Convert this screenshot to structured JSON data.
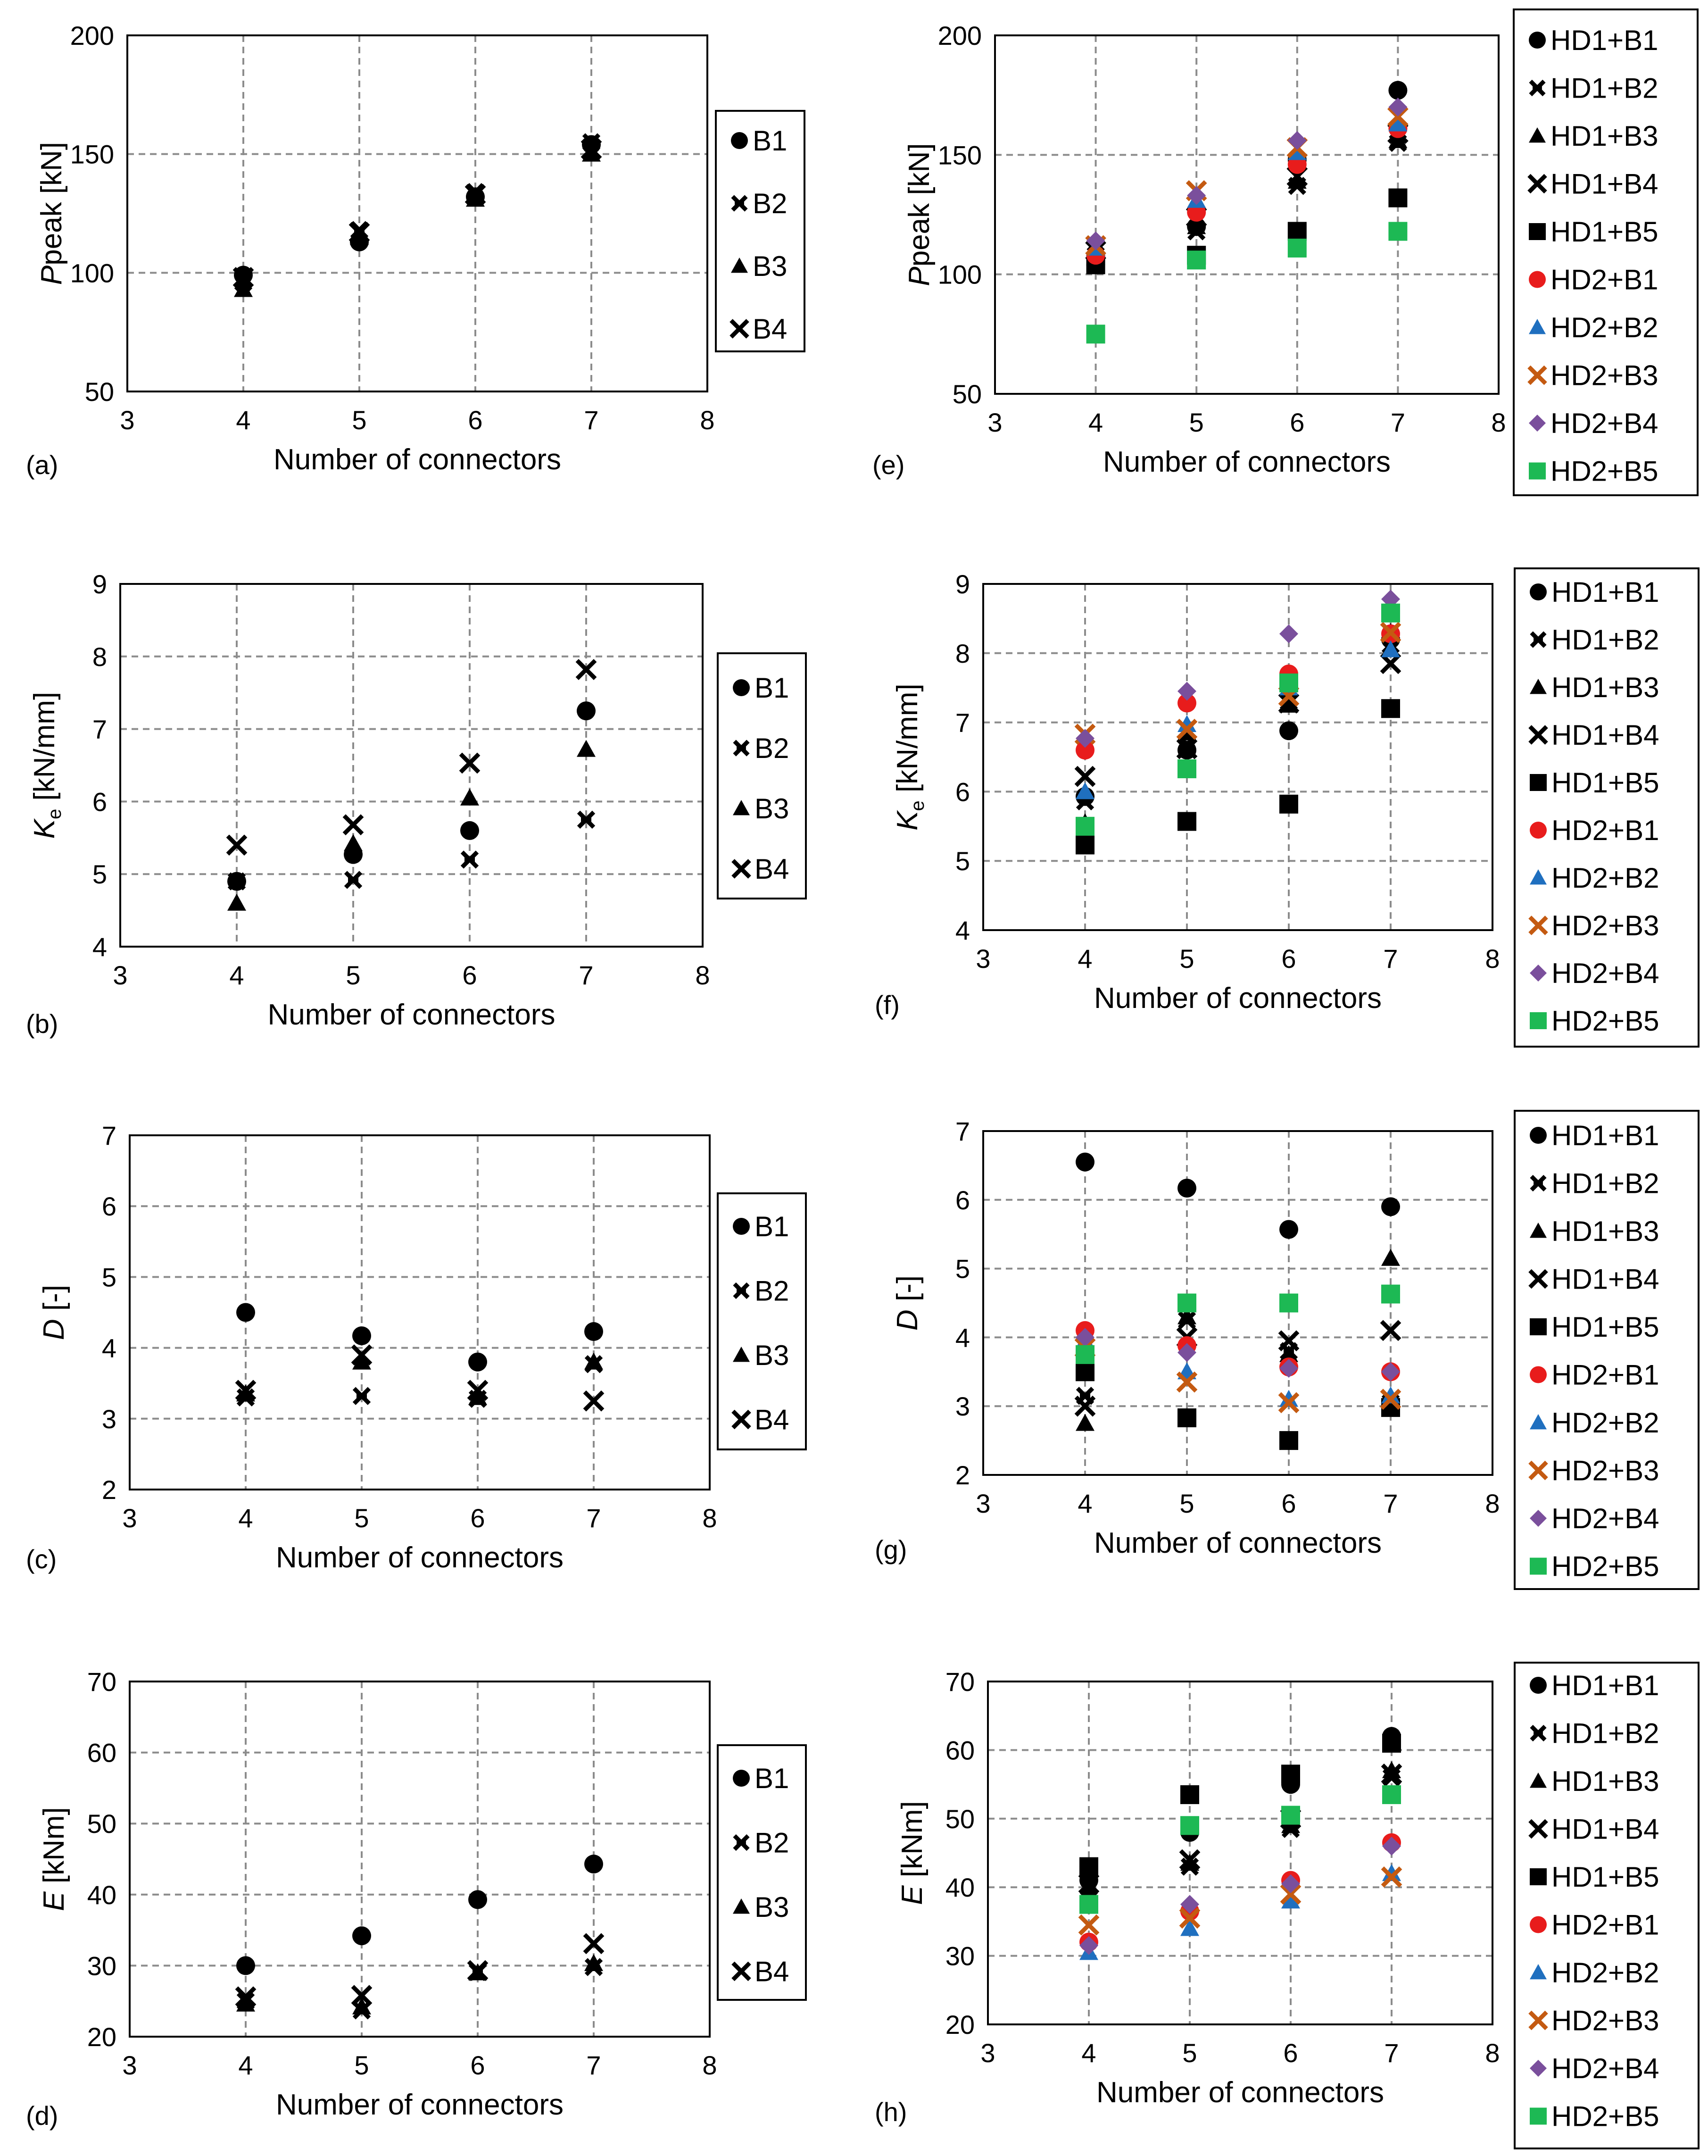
{
  "colors": {
    "HD1+B1": "#000000",
    "HD1+B2": "#000000",
    "HD1+B3": "#000000",
    "HD1+B4": "#000000",
    "HD1+B5": "#000000",
    "HD2+B1": "#e81c1c",
    "HD2+B2": "#1f6fbf",
    "HD2+B3": "#c45a11",
    "HD2+B4": "#7a4f9c",
    "HD2+B5": "#1db954",
    "B1": "#000000",
    "B2": "#000000",
    "B3": "#000000",
    "B4": "#000000"
  },
  "chart_data": [
    {
      "id": "a",
      "panel_label": "(a)",
      "type": "scatter",
      "xlabel": "Number of connectors",
      "ylabel_italic": "P",
      "ylabel_rest": "peak [kN]",
      "xlim": [
        3,
        8
      ],
      "ylim": [
        50,
        200
      ],
      "xticks": [
        "3",
        "4",
        "5",
        "6",
        "7",
        "8"
      ],
      "yticks": [
        "50",
        "100",
        "150",
        "200"
      ],
      "x": [
        4,
        5,
        6,
        7
      ],
      "series": [
        {
          "name": "B1",
          "marker": "circle",
          "values": [
            99,
            113,
            132,
            154
          ]
        },
        {
          "name": "B2",
          "marker": "star",
          "values": [
            96,
            118,
            134,
            155
          ]
        },
        {
          "name": "B3",
          "marker": "triangle",
          "values": [
            93,
            115,
            131,
            150
          ]
        },
        {
          "name": "B4",
          "marker": "x",
          "values": [
            98,
            117,
            133,
            152
          ]
        }
      ]
    },
    {
      "id": "e",
      "panel_label": "(e)",
      "type": "scatter",
      "xlabel": "Number of connectors",
      "ylabel_italic": "P",
      "ylabel_rest": "peak [kN]",
      "xlim": [
        3,
        8
      ],
      "ylim": [
        50,
        200
      ],
      "xticks": [
        "3",
        "4",
        "5",
        "6",
        "7",
        "8"
      ],
      "yticks": [
        "50",
        "100",
        "150",
        "200"
      ],
      "x": [
        4,
        5,
        6,
        7
      ],
      "series": [
        {
          "name": "HD1+B1",
          "marker": "circle",
          "values": [
            104,
            120,
            148,
            177
          ]
        },
        {
          "name": "HD1+B2",
          "marker": "star",
          "values": [
            108,
            118,
            137,
            155
          ]
        },
        {
          "name": "HD1+B3",
          "marker": "triangle",
          "values": [
            106,
            120,
            139,
            156
          ]
        },
        {
          "name": "HD1+B4",
          "marker": "x",
          "values": [
            110,
            124,
            141,
            159
          ]
        },
        {
          "name": "HD1+B5",
          "marker": "square",
          "values": [
            104,
            108,
            118,
            132
          ]
        },
        {
          "name": "HD2+B1",
          "marker": "circle",
          "values": [
            108,
            126,
            146,
            161
          ]
        },
        {
          "name": "HD2+B2",
          "marker": "triangle",
          "values": [
            111,
            131,
            151,
            163
          ]
        },
        {
          "name": "HD2+B3",
          "marker": "x",
          "values": [
            112,
            135,
            153,
            166
          ]
        },
        {
          "name": "HD2+B4",
          "marker": "diamond",
          "values": [
            114,
            133,
            156,
            170
          ]
        },
        {
          "name": "HD2+B5",
          "marker": "square",
          "values": [
            75,
            106,
            111,
            118
          ]
        }
      ]
    },
    {
      "id": "b",
      "panel_label": "(b)",
      "type": "scatter",
      "xlabel": "Number of connectors",
      "ylabel_italic": "K",
      "ylabel_sub": "e",
      "ylabel_rest": " [kN/mm]",
      "xlim": [
        3,
        8
      ],
      "ylim": [
        4,
        9
      ],
      "xticks": [
        "3",
        "4",
        "5",
        "6",
        "7",
        "8"
      ],
      "yticks": [
        "4",
        "5",
        "6",
        "7",
        "8",
        "9"
      ],
      "x": [
        4,
        5,
        6,
        7
      ],
      "series": [
        {
          "name": "B1",
          "marker": "circle",
          "values": [
            4.9,
            5.27,
            5.6,
            7.25
          ]
        },
        {
          "name": "B2",
          "marker": "star",
          "values": [
            4.9,
            4.92,
            5.2,
            5.75
          ]
        },
        {
          "name": "B3",
          "marker": "triangle",
          "values": [
            4.6,
            5.42,
            6.05,
            6.72
          ]
        },
        {
          "name": "B4",
          "marker": "x",
          "values": [
            5.4,
            5.68,
            6.53,
            7.82
          ]
        }
      ]
    },
    {
      "id": "f",
      "panel_label": "(f)",
      "type": "scatter",
      "xlabel": "Number of connectors",
      "ylabel_italic": "K",
      "ylabel_sub": "e",
      "ylabel_rest": " [kN/mm]",
      "xlim": [
        3,
        8
      ],
      "ylim": [
        4,
        9
      ],
      "xticks": [
        "3",
        "4",
        "5",
        "6",
        "7",
        "8"
      ],
      "yticks": [
        "4",
        "5",
        "6",
        "7",
        "8",
        "9"
      ],
      "x": [
        4,
        5,
        6,
        7
      ],
      "series": [
        {
          "name": "HD1+B1",
          "marker": "circle",
          "values": [
            5.93,
            6.6,
            6.88,
            8.2
          ]
        },
        {
          "name": "HD1+B2",
          "marker": "star",
          "values": [
            5.86,
            6.68,
            7.3,
            8.12
          ]
        },
        {
          "name": "HD1+B3",
          "marker": "triangle",
          "values": [
            5.55,
            6.85,
            7.25,
            8.3
          ]
        },
        {
          "name": "HD1+B4",
          "marker": "x",
          "values": [
            6.22,
            6.62,
            7.28,
            7.85
          ]
        },
        {
          "name": "HD1+B5",
          "marker": "square",
          "values": [
            5.23,
            5.57,
            5.82,
            7.2
          ]
        },
        {
          "name": "HD2+B1",
          "marker": "circle",
          "values": [
            6.6,
            7.28,
            7.7,
            8.28
          ]
        },
        {
          "name": "HD2+B2",
          "marker": "triangle",
          "values": [
            6.0,
            6.97,
            7.5,
            8.05
          ]
        },
        {
          "name": "HD2+B3",
          "marker": "x",
          "values": [
            6.83,
            6.9,
            7.38,
            8.3
          ]
        },
        {
          "name": "HD2+B4",
          "marker": "diamond",
          "values": [
            6.77,
            7.45,
            8.28,
            8.78
          ]
        },
        {
          "name": "HD2+B5",
          "marker": "square",
          "values": [
            5.5,
            6.33,
            7.57,
            8.58
          ]
        }
      ]
    },
    {
      "id": "c",
      "panel_label": "(c)",
      "type": "scatter",
      "xlabel": "Number of connectors",
      "ylabel_italic": "D",
      "ylabel_rest": " [-]",
      "xlim": [
        3,
        8
      ],
      "ylim": [
        2,
        7
      ],
      "xticks": [
        "3",
        "4",
        "5",
        "6",
        "7",
        "8"
      ],
      "yticks": [
        "2",
        "3",
        "4",
        "5",
        "6",
        "7"
      ],
      "x": [
        4,
        5,
        6,
        7
      ],
      "series": [
        {
          "name": "B1",
          "marker": "circle",
          "values": [
            4.5,
            4.17,
            3.8,
            4.23
          ]
        },
        {
          "name": "B2",
          "marker": "star",
          "values": [
            3.3,
            3.32,
            3.28,
            3.77
          ]
        },
        {
          "name": "B3",
          "marker": "triangle",
          "values": [
            3.35,
            3.8,
            3.3,
            3.8
          ]
        },
        {
          "name": "B4",
          "marker": "x",
          "values": [
            3.4,
            3.9,
            3.4,
            3.25
          ]
        }
      ]
    },
    {
      "id": "g",
      "panel_label": "(g)",
      "type": "scatter",
      "xlabel": "Number of connectors",
      "ylabel_italic": "D",
      "ylabel_rest": " [-]",
      "xlim": [
        3,
        8
      ],
      "ylim": [
        2,
        7
      ],
      "xticks": [
        "3",
        "4",
        "5",
        "6",
        "7",
        "8"
      ],
      "yticks": [
        "2",
        "3",
        "4",
        "5",
        "6",
        "7"
      ],
      "x": [
        4,
        5,
        6,
        7
      ],
      "series": [
        {
          "name": "HD1+B1",
          "marker": "circle",
          "values": [
            6.55,
            6.17,
            5.57,
            5.9
          ]
        },
        {
          "name": "HD1+B2",
          "marker": "star",
          "values": [
            3.15,
            4.25,
            3.8,
            3.05
          ]
        },
        {
          "name": "HD1+B3",
          "marker": "triangle",
          "values": [
            2.75,
            4.3,
            3.75,
            5.15
          ]
        },
        {
          "name": "HD1+B4",
          "marker": "x",
          "values": [
            3.0,
            4.0,
            3.95,
            4.1
          ]
        },
        {
          "name": "HD1+B5",
          "marker": "square",
          "values": [
            3.5,
            2.83,
            2.5,
            2.98
          ]
        },
        {
          "name": "HD2+B1",
          "marker": "circle",
          "values": [
            4.1,
            3.88,
            3.57,
            3.5
          ]
        },
        {
          "name": "HD2+B2",
          "marker": "triangle",
          "values": [
            3.95,
            3.5,
            3.1,
            3.15
          ]
        },
        {
          "name": "HD2+B3",
          "marker": "x",
          "values": [
            3.85,
            3.35,
            3.05,
            3.1
          ]
        },
        {
          "name": "HD2+B4",
          "marker": "diamond",
          "values": [
            4.0,
            3.78,
            3.55,
            3.5
          ]
        },
        {
          "name": "HD2+B5",
          "marker": "square",
          "values": [
            3.75,
            4.5,
            4.5,
            4.63
          ]
        }
      ]
    },
    {
      "id": "d",
      "panel_label": "(d)",
      "type": "scatter",
      "xlabel": "Number of connectors",
      "ylabel_italic": "E",
      "ylabel_rest": " [kNm]",
      "xlim": [
        3,
        8
      ],
      "ylim": [
        20,
        70
      ],
      "xticks": [
        "3",
        "4",
        "5",
        "6",
        "7",
        "8"
      ],
      "yticks": [
        "20",
        "30",
        "40",
        "50",
        "60",
        "70"
      ],
      "x": [
        4,
        5,
        6,
        7
      ],
      "series": [
        {
          "name": "B1",
          "marker": "circle",
          "values": [
            30,
            34.2,
            39.3,
            44.3
          ]
        },
        {
          "name": "B2",
          "marker": "star",
          "values": [
            25,
            23.7,
            29.1,
            29.8
          ]
        },
        {
          "name": "B3",
          "marker": "triangle",
          "values": [
            24.6,
            24.2,
            29.0,
            30.3
          ]
        },
        {
          "name": "B4",
          "marker": "x",
          "values": [
            25.6,
            25.8,
            29.3,
            33.1
          ]
        }
      ]
    },
    {
      "id": "h",
      "panel_label": "(h)",
      "type": "scatter",
      "xlabel": "Number of connectors",
      "ylabel_italic": "E",
      "ylabel_rest": " [kNm]",
      "xlim": [
        3,
        8
      ],
      "ylim": [
        20,
        70
      ],
      "xticks": [
        "3",
        "4",
        "5",
        "6",
        "7",
        "8"
      ],
      "yticks": [
        "20",
        "30",
        "40",
        "50",
        "60",
        "70"
      ],
      "x": [
        4,
        5,
        6,
        7
      ],
      "series": [
        {
          "name": "HD1+B1",
          "marker": "circle",
          "values": [
            41,
            48,
            55,
            62
          ]
        },
        {
          "name": "HD1+B2",
          "marker": "star",
          "values": [
            40,
            43,
            48.5,
            56
          ]
        },
        {
          "name": "HD1+B3",
          "marker": "triangle",
          "values": [
            39.5,
            43.5,
            49,
            57
          ]
        },
        {
          "name": "HD1+B4",
          "marker": "x",
          "values": [
            40.5,
            44,
            50,
            56.5
          ]
        },
        {
          "name": "HD1+B5",
          "marker": "square",
          "values": [
            43,
            53.5,
            56.5,
            61
          ]
        },
        {
          "name": "HD2+B1",
          "marker": "circle",
          "values": [
            32,
            36.5,
            41,
            46.5
          ]
        },
        {
          "name": "HD2+B2",
          "marker": "triangle",
          "values": [
            30.5,
            34,
            38,
            42
          ]
        },
        {
          "name": "HD2+B3",
          "marker": "x",
          "values": [
            34.5,
            35.5,
            39,
            41.5
          ]
        },
        {
          "name": "HD2+B4",
          "marker": "diamond",
          "values": [
            31.5,
            37.5,
            40.5,
            46
          ]
        },
        {
          "name": "HD2+B5",
          "marker": "square",
          "values": [
            37.5,
            49,
            50.5,
            53.5
          ]
        }
      ]
    }
  ]
}
